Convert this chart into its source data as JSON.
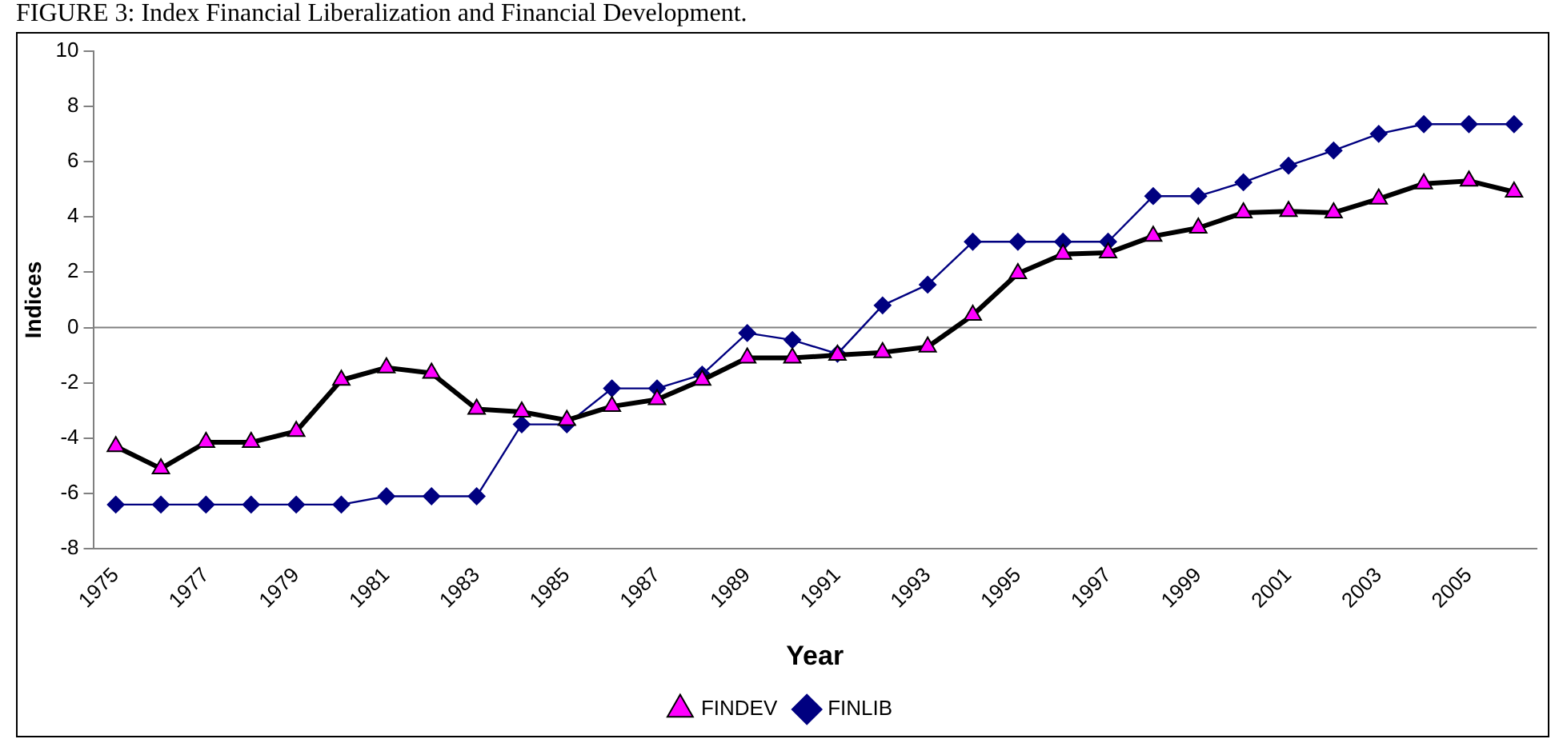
{
  "chart_data": {
    "type": "line",
    "title": "FIGURE 3: Index Financial Liberalization and Financial Development.",
    "xlabel": "Year",
    "ylabel": "Indices",
    "categories": [
      "1975",
      null,
      "1977",
      null,
      "1979",
      null,
      "1981",
      null,
      "1983",
      null,
      "1985",
      null,
      "1987",
      null,
      "1989",
      null,
      "1991",
      null,
      "1993",
      null,
      "1995",
      null,
      "1997",
      null,
      "1999",
      null,
      "2001",
      null,
      "2003",
      null,
      "2005",
      null
    ],
    "series": [
      {
        "name": "FINLIB",
        "color": "#000080",
        "marker": "diamond",
        "values": [
          -6.4,
          -6.4,
          -6.4,
          -6.4,
          -6.4,
          -6.4,
          -6.1,
          -6.1,
          -6.1,
          -3.5,
          -3.5,
          -2.2,
          -2.2,
          -1.7,
          -0.2,
          -0.45,
          -0.95,
          0.8,
          1.55,
          3.1,
          3.1,
          3.1,
          3.1,
          4.75,
          4.75,
          5.25,
          5.85,
          6.4,
          7.0,
          7.35,
          7.35,
          7.35
        ]
      },
      {
        "name": "FINDEV",
        "color": "#000000",
        "marker": "triangle",
        "values": [
          -4.3,
          -5.1,
          -4.15,
          -4.15,
          -3.75,
          -1.9,
          -1.45,
          -1.65,
          -2.95,
          -3.05,
          -3.35,
          -2.85,
          -2.6,
          -1.9,
          -1.1,
          -1.1,
          -1.0,
          -0.9,
          -0.7,
          0.45,
          1.95,
          2.65,
          2.7,
          3.3,
          3.6,
          4.15,
          4.2,
          4.15,
          4.65,
          5.2,
          5.3,
          4.9
        ]
      }
    ],
    "ylim": [
      -8,
      10
    ],
    "yticks": [
      -8,
      -6,
      -4,
      -2,
      0,
      2,
      4,
      6,
      8,
      10
    ],
    "ref_lines": [
      {
        "axis": "y",
        "value": 0,
        "color": "#808080"
      }
    ],
    "grid": false,
    "legend": "bottom"
  }
}
